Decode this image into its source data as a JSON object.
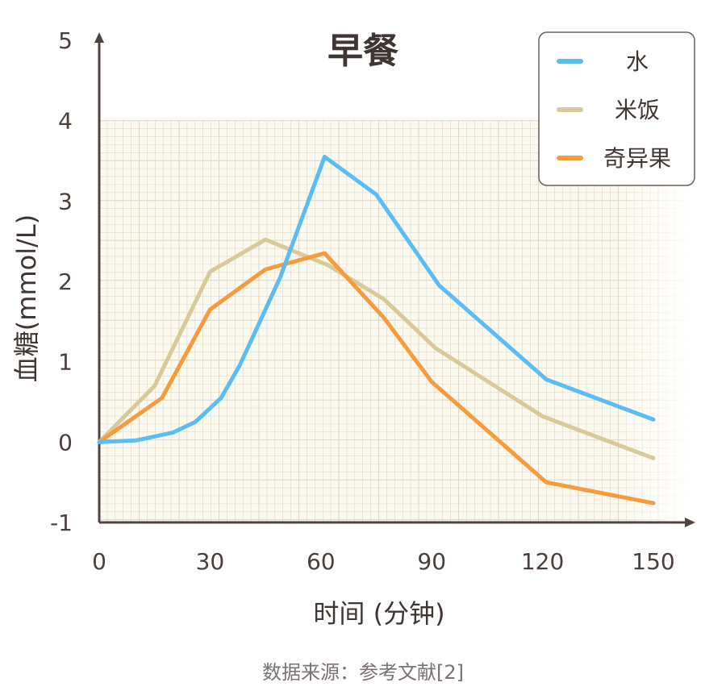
{
  "chart_data": {
    "type": "line",
    "title": "早餐",
    "xlabel": "时间 (分钟)",
    "ylabel": "血糖(mmol/L)",
    "xlim": [
      0,
      150
    ],
    "ylim": [
      -1,
      5
    ],
    "x_ticks": [
      0,
      30,
      60,
      90,
      120,
      150
    ],
    "y_ticks": [
      -1,
      0,
      1,
      2,
      3,
      4,
      5
    ],
    "grid": true,
    "grid_range_y": [
      -1,
      4
    ],
    "legend_position": "top-right",
    "series": [
      {
        "name": "水",
        "color": "#5bbcf2",
        "points": [
          [
            0,
            0
          ],
          [
            10,
            0.02
          ],
          [
            20,
            0.12
          ],
          [
            26,
            0.25
          ],
          [
            33,
            0.55
          ],
          [
            38,
            0.95
          ],
          [
            43,
            1.45
          ],
          [
            49,
            2.05
          ],
          [
            55,
            2.8
          ],
          [
            61,
            3.55
          ],
          [
            75,
            3.08
          ],
          [
            92,
            1.95
          ],
          [
            121,
            0.78
          ],
          [
            150,
            0.28
          ]
        ]
      },
      {
        "name": "米饭",
        "color": "#d8c99a",
        "points": [
          [
            0,
            0
          ],
          [
            15,
            0.7
          ],
          [
            30,
            2.12
          ],
          [
            45,
            2.52
          ],
          [
            62,
            2.2
          ],
          [
            77,
            1.78
          ],
          [
            91,
            1.17
          ],
          [
            120,
            0.32
          ],
          [
            150,
            -0.2
          ]
        ]
      },
      {
        "name": "奇异果",
        "color": "#f59b3d",
        "points": [
          [
            0,
            0
          ],
          [
            17,
            0.55
          ],
          [
            30,
            1.65
          ],
          [
            45,
            2.15
          ],
          [
            61,
            2.35
          ],
          [
            77,
            1.55
          ],
          [
            90,
            0.75
          ],
          [
            121,
            -0.5
          ],
          [
            150,
            -0.76
          ]
        ]
      }
    ]
  },
  "footer": {
    "source": "数据来源：参考文献[2]"
  }
}
